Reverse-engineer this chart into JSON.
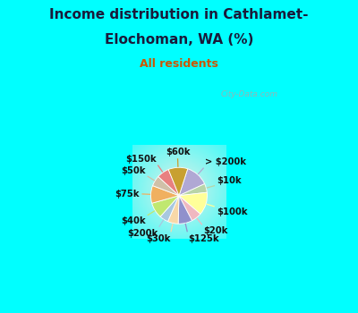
{
  "title_line1": "Income distribution in Cathlamet-",
  "title_line2": "Elochoman, WA (%)",
  "subtitle": "All residents",
  "title_color": "#1a1a3a",
  "subtitle_color": "#cc5500",
  "bg_color": "#00FFFF",
  "chart_bg_center": "#e8f5ee",
  "chart_bg_edge": "#00FFFF",
  "watermark": "City-Data.com",
  "slices": [
    {
      "label": "> $200k",
      "value": 13,
      "color": "#b0a8d4"
    },
    {
      "label": "$10k",
      "value": 5,
      "color": "#b8d4a8"
    },
    {
      "label": "$100k",
      "value": 13,
      "color": "#ffff99"
    },
    {
      "label": "$20k",
      "value": 6,
      "color": "#f0b8c0"
    },
    {
      "label": "$125k",
      "value": 8,
      "color": "#9090cc"
    },
    {
      "label": "$30k",
      "value": 6,
      "color": "#f8d8a8"
    },
    {
      "label": "$200k",
      "value": 5,
      "color": "#a8c8e0"
    },
    {
      "label": "$40k",
      "value": 9,
      "color": "#c0e870"
    },
    {
      "label": "$75k",
      "value": 10,
      "color": "#f0b060"
    },
    {
      "label": "$50k",
      "value": 6,
      "color": "#d0c0a8"
    },
    {
      "label": "$150k",
      "value": 7,
      "color": "#e88080"
    },
    {
      "label": "$60k",
      "value": 11,
      "color": "#c8a030"
    }
  ]
}
